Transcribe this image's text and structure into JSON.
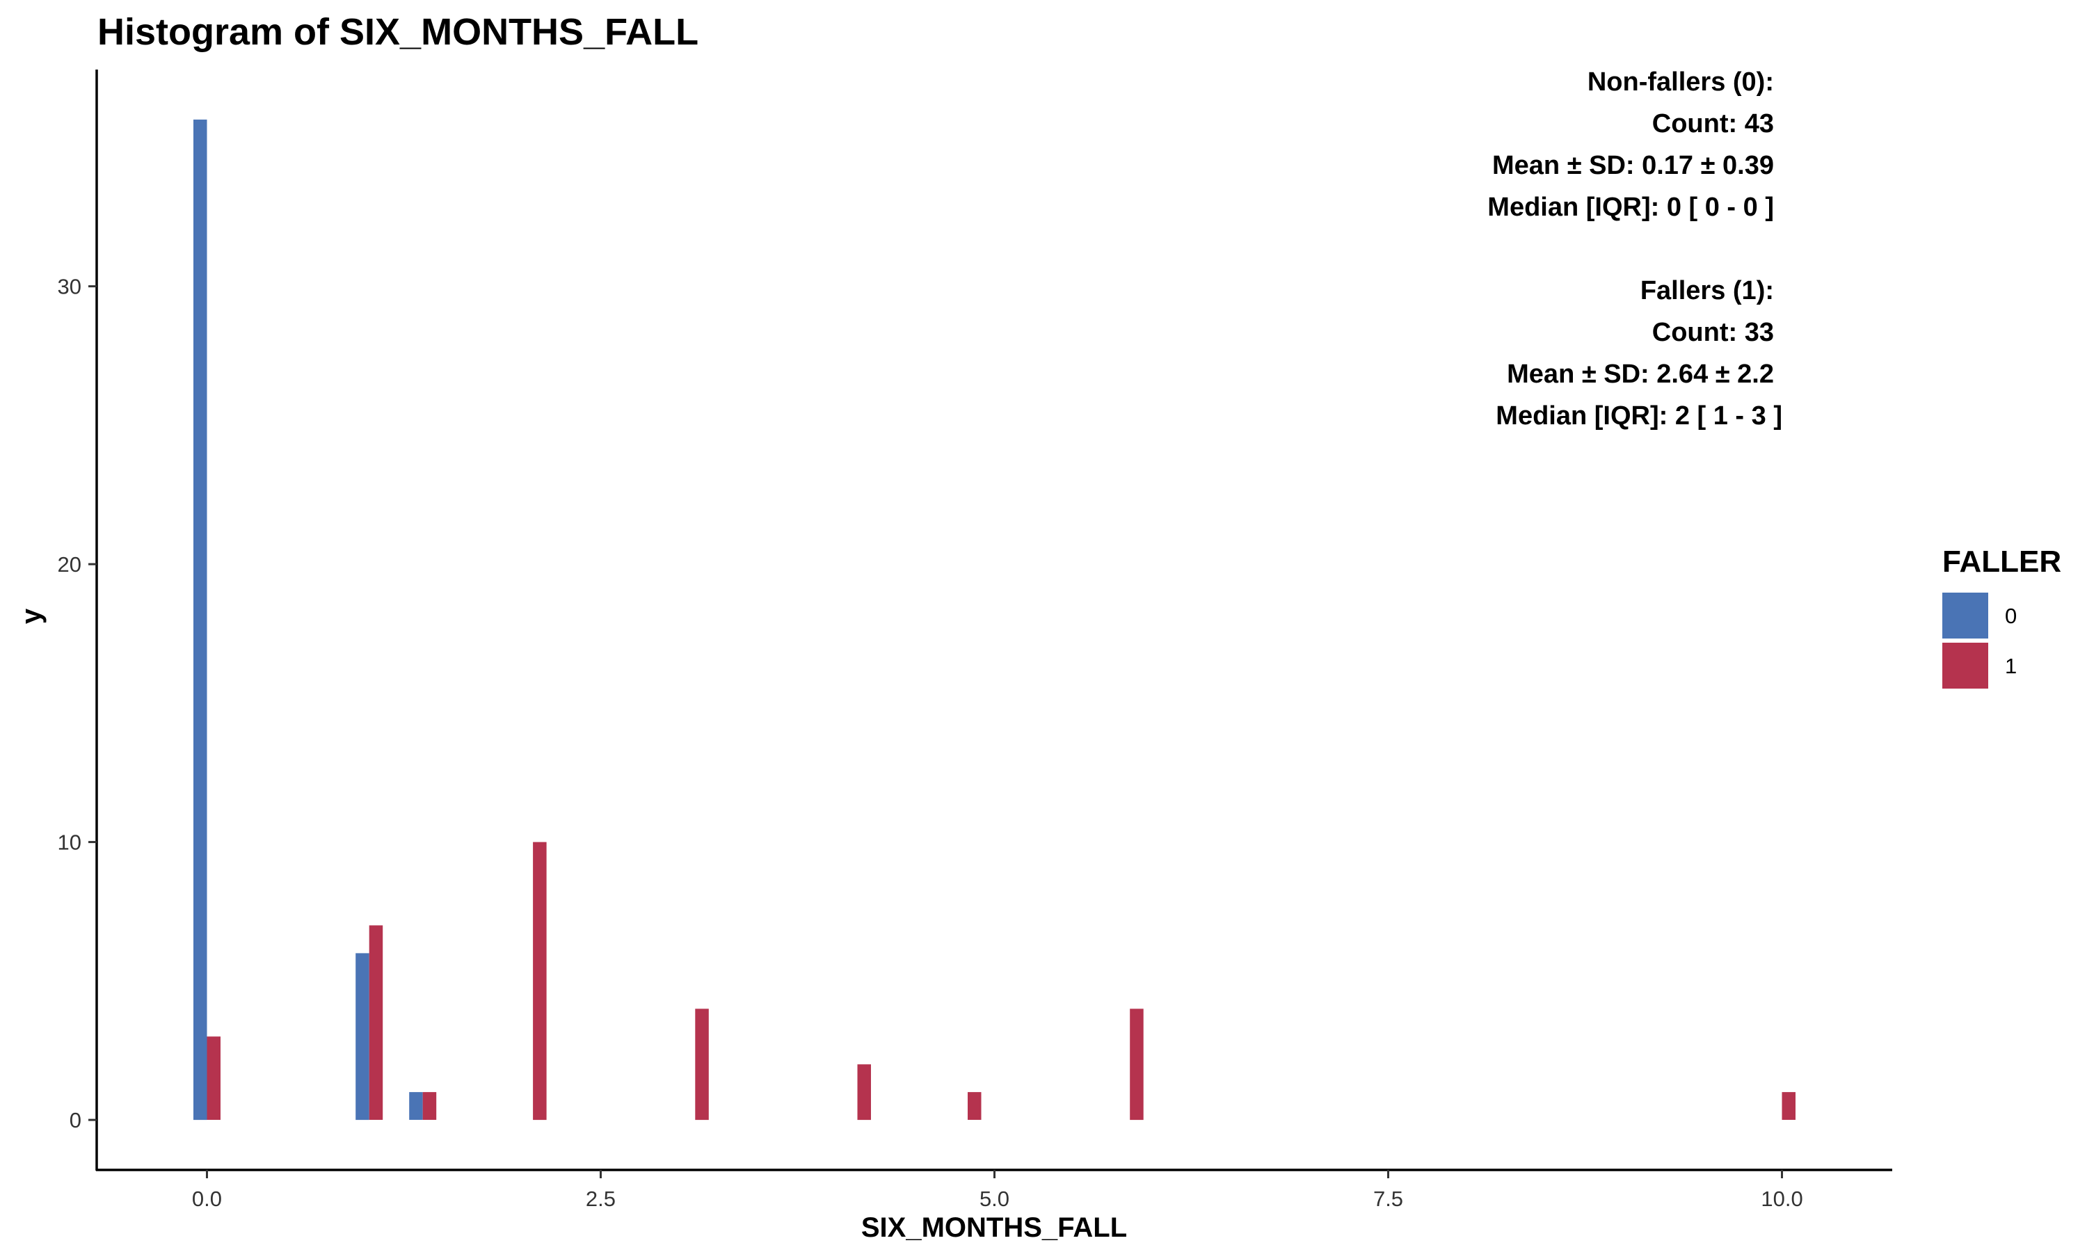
{
  "chart_data": {
    "type": "bar",
    "title": "Histogram of SIX_MONTHS_FALL",
    "xlabel": "SIX_MONTHS_FALL",
    "ylabel": "y",
    "xlim": [
      -0.7,
      10.7
    ],
    "ylim": [
      -1.8,
      37.8
    ],
    "x_ticks": [
      0,
      2.5,
      5,
      7.5,
      10
    ],
    "x_tick_labels": [
      "0.0",
      "2.5",
      "5.0",
      "7.5",
      "10.0"
    ],
    "y_ticks": [
      0,
      10,
      20,
      30
    ],
    "y_tick_labels": [
      "0",
      "10",
      "20",
      "30"
    ],
    "grid": false,
    "legend": {
      "title": "FALLER",
      "position": "right"
    },
    "bin_width": 0.172,
    "series": [
      {
        "name": "0",
        "color": "#4a74b5",
        "bars": [
          {
            "x": 0.0,
            "value": 36
          },
          {
            "x": 1.03,
            "value": 6
          },
          {
            "x": 1.37,
            "value": 1
          }
        ]
      },
      {
        "name": "1",
        "color": "#b5334e",
        "bars": [
          {
            "x": 0.0,
            "value": 3
          },
          {
            "x": 1.03,
            "value": 7
          },
          {
            "x": 1.37,
            "value": 1
          },
          {
            "x": 2.07,
            "value": 10
          },
          {
            "x": 3.1,
            "value": 4
          },
          {
            "x": 4.13,
            "value": 2
          },
          {
            "x": 4.83,
            "value": 1
          },
          {
            "x": 5.86,
            "value": 4
          },
          {
            "x": 10.0,
            "value": 1
          }
        ]
      }
    ],
    "annotations": [
      "Non-fallers (0):",
      "Count: 43",
      "Mean ± SD: 0.17 ± 0.39",
      "Median [IQR]: 0 [ 0 - 0 ]",
      "",
      "Fallers (1):",
      "Count: 33",
      "Mean ± SD: 2.64 ± 2.2",
      "Median [IQR]: 2 [ 1 - 3 ]"
    ]
  }
}
